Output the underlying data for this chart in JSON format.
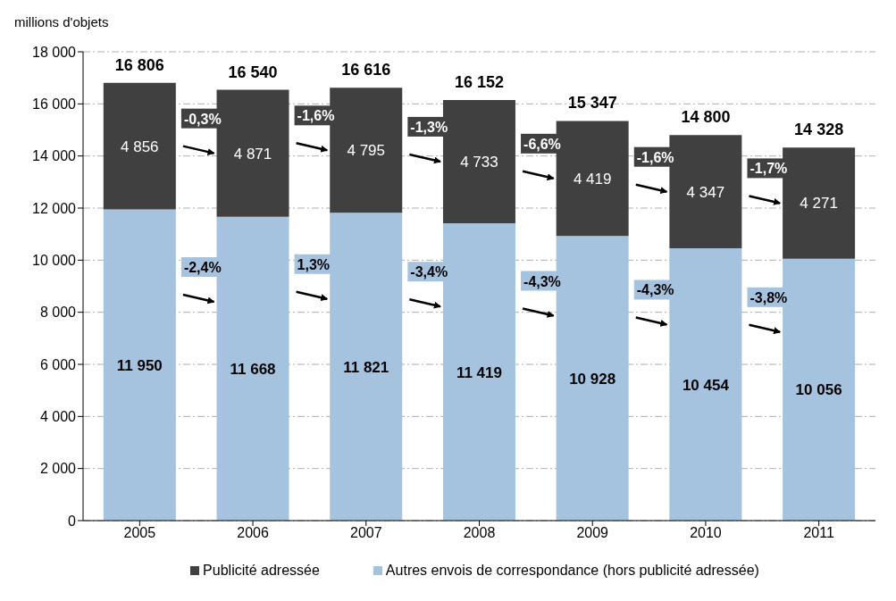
{
  "chart_data": {
    "type": "bar",
    "stacked": true,
    "ylabel": "millions d'objets",
    "categories": [
      "2005",
      "2006",
      "2007",
      "2008",
      "2009",
      "2010",
      "2011"
    ],
    "series": [
      {
        "name": "Autres envois de correspondance (hors publicité adressée)",
        "color": "#a5c3de",
        "values": [
          11950,
          11668,
          11821,
          11419,
          10928,
          10454,
          10056
        ]
      },
      {
        "name": "Publicité adressée",
        "color": "#404040",
        "values": [
          4856,
          4871,
          4795,
          4733,
          4419,
          4347,
          4271
        ]
      }
    ],
    "totals": [
      "16 806",
      "16 540",
      "16 616",
      "16 152",
      "15 347",
      "14 800",
      "14 328"
    ],
    "data_labels": true,
    "ylim": [
      0,
      18000
    ],
    "yticks": [
      {
        "value": 0,
        "label": "0"
      },
      {
        "value": 2000,
        "label": "2 000"
      },
      {
        "value": 4000,
        "label": "4 000"
      },
      {
        "value": 6000,
        "label": "6 000"
      },
      {
        "value": 8000,
        "label": "8 000"
      },
      {
        "value": 10000,
        "label": "10 000"
      },
      {
        "value": 12000,
        "label": "12 000"
      },
      {
        "value": 14000,
        "label": "14 000"
      },
      {
        "value": 16000,
        "label": "16 000"
      },
      {
        "value": 18000,
        "label": "18 000"
      }
    ],
    "grid": "y",
    "legend": "bottom",
    "annotations": [
      "-0,3%",
      "-1,6%",
      "-1,3%",
      "-6,6%",
      "-1,6%",
      "-1,7%",
      "-2,4%",
      "1,3%",
      "-3,4%",
      "-4,3%",
      "-4,3%",
      "-3,8%"
    ]
  }
}
